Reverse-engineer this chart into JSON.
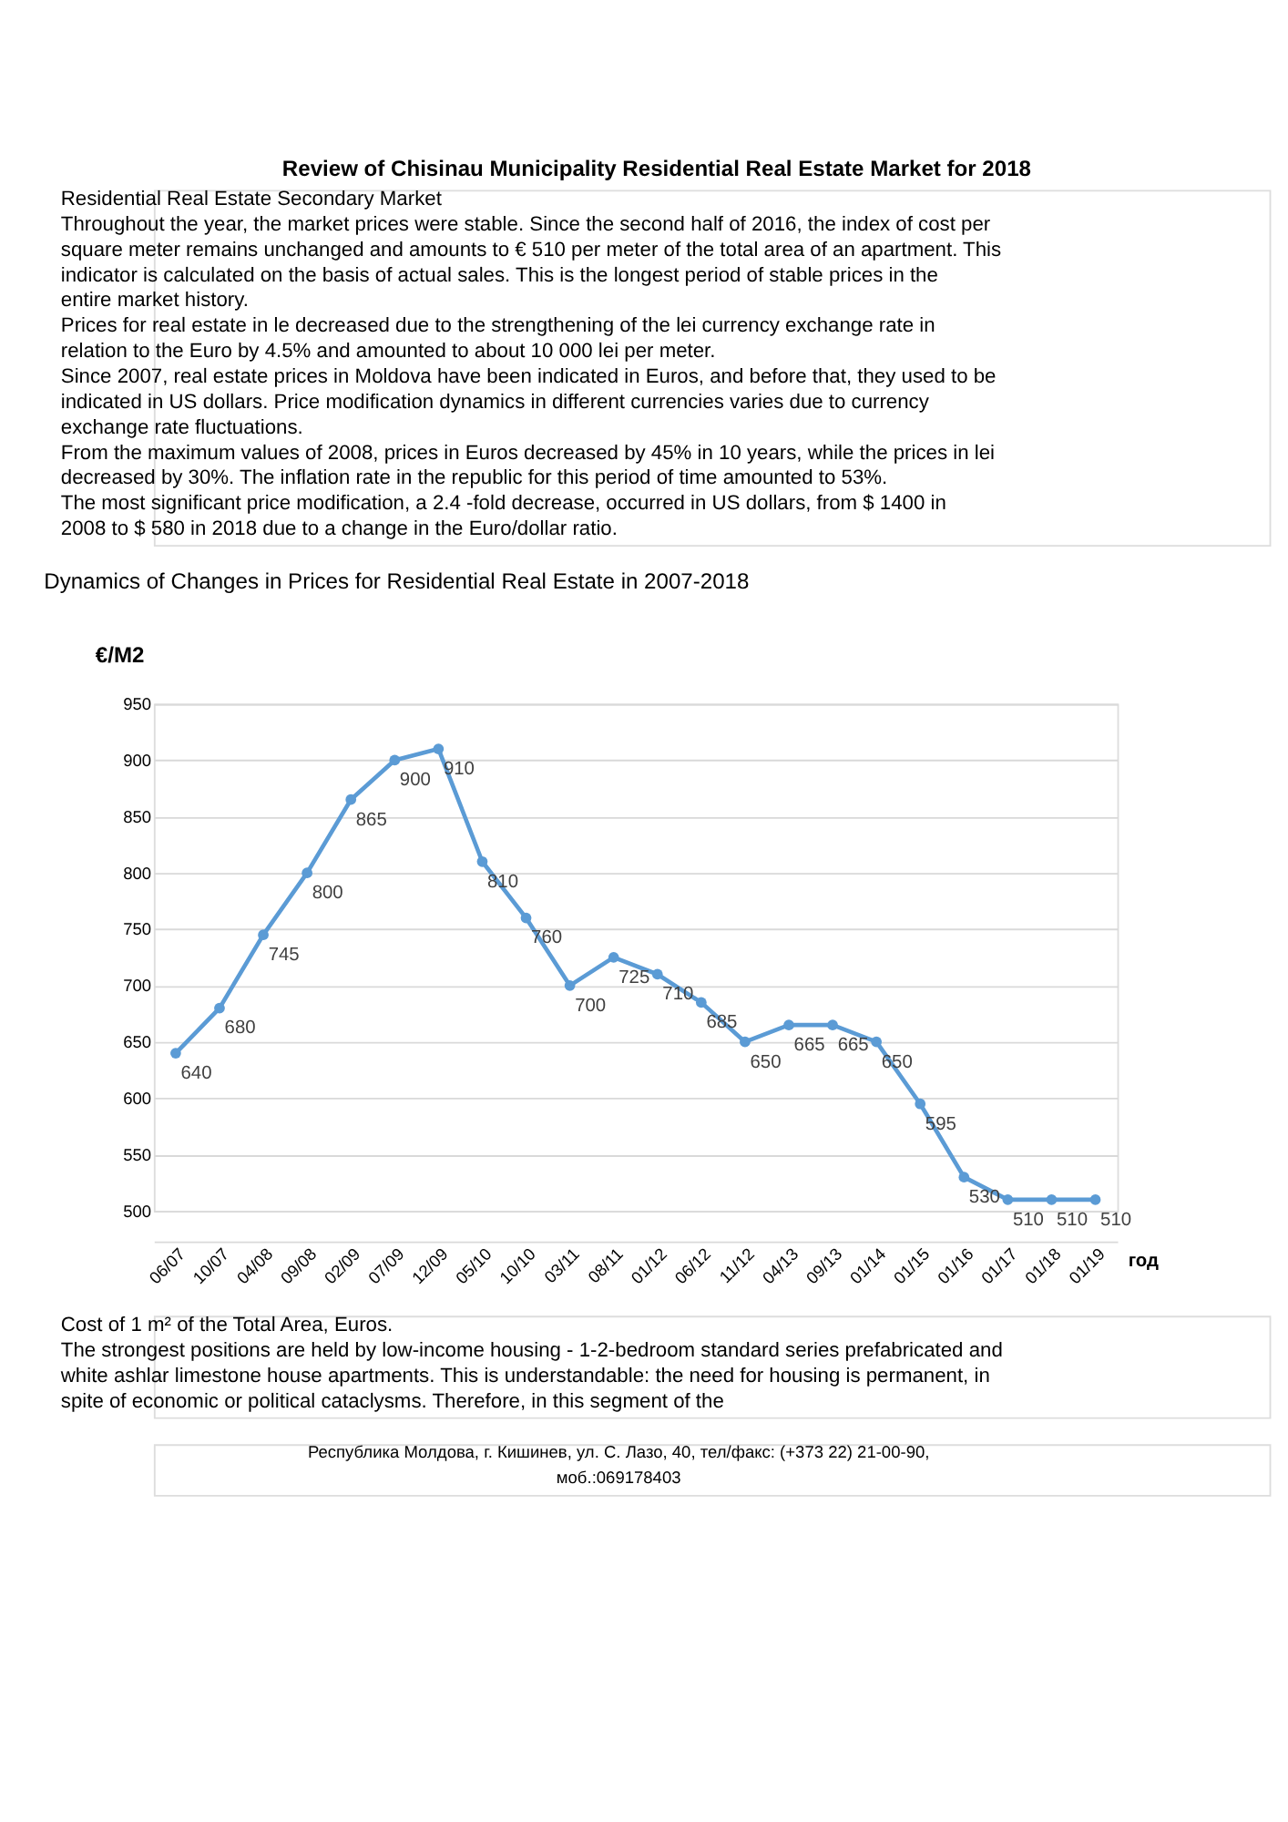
{
  "chart_data": {
    "type": "line",
    "title": "Review of Chisinau Municipality Residential Real Estate Market for 2018",
    "subtitle": "Dynamics of Changes in Prices for Residential Real Estate in 2007-2018",
    "annotations": [
      "Residential Real Estate Secondary Market",
      "Throughout the year, the market prices were stable. Since the second half of 2016, the index of cost per square meter remains unchanged and amounts to € 510 per meter of the total area of an apartment. This indicator is calculated on the basis of actual sales. This is the longest period of stable prices in the entire market history.",
      "Prices for real estate in le decreased due to the strengthening of the lei currency exchange rate in relation to the Euro by 4.5% and amounted to about 10 000 lei per meter.",
      "Since 2007, real estate prices in Moldova have been indicated in Euros, and before that, they used to be indicated in US dollars. Price modification dynamics in different currencies varies due to currency exchange rate fluctuations.",
      "From the maximum values of 2008, prices in Euros decreased by 45% in 10 years, while the prices in lei decreased by 30%. The inflation rate in the republic for this period of time amounted to 53%.",
      "The most significant price modification, a 2.4 -fold decrease, occurred in US dollars, from $ 1400 in 2008 to $ 580 in 2018 due to a change in the Euro/dollar ratio.",
      "Cost of 1 m² of the Total Area, Euros.",
      "The strongest positions are held by low-income housing - 1-2-bedroom standard series prefabricated and white ashlar limestone house apartments. This is understandable: the need for housing is permanent, in spite of economic or political cataclysms. Therefore, in this segment of the",
      "Республика Молдова, г. Кишинев, ул. С. Лазо, 40, тел/факс: (+373 22) 21-00-90, моб.:069178403"
    ],
    "ylabel": "€/M2",
    "xlabel": "год",
    "categories": [
      "06/07",
      "10/07",
      "04/08",
      "09/08",
      "02/09",
      "07/09",
      "12/09",
      "05/10",
      "10/10",
      "03/11",
      "08/11",
      "01/12",
      "06/12",
      "11/12",
      "04/13",
      "09/13",
      "01/14",
      "01/15",
      "01/16",
      "01/17",
      "01/18",
      "01/19"
    ],
    "series": [
      {
        "color": "#5b9bd5",
        "values": [
          640,
          680,
          745,
          800,
          865,
          900,
          910,
          810,
          760,
          700,
          725,
          710,
          685,
          650,
          665,
          665,
          650,
          595,
          530,
          510,
          510,
          510
        ]
      }
    ],
    "ylim": [
      500,
      950
    ],
    "yticks": [
      500,
      550,
      600,
      650,
      700,
      750,
      800,
      850,
      900,
      950
    ],
    "grid": "y",
    "marker": "circle",
    "line_style": "solid",
    "data_labels": true
  }
}
